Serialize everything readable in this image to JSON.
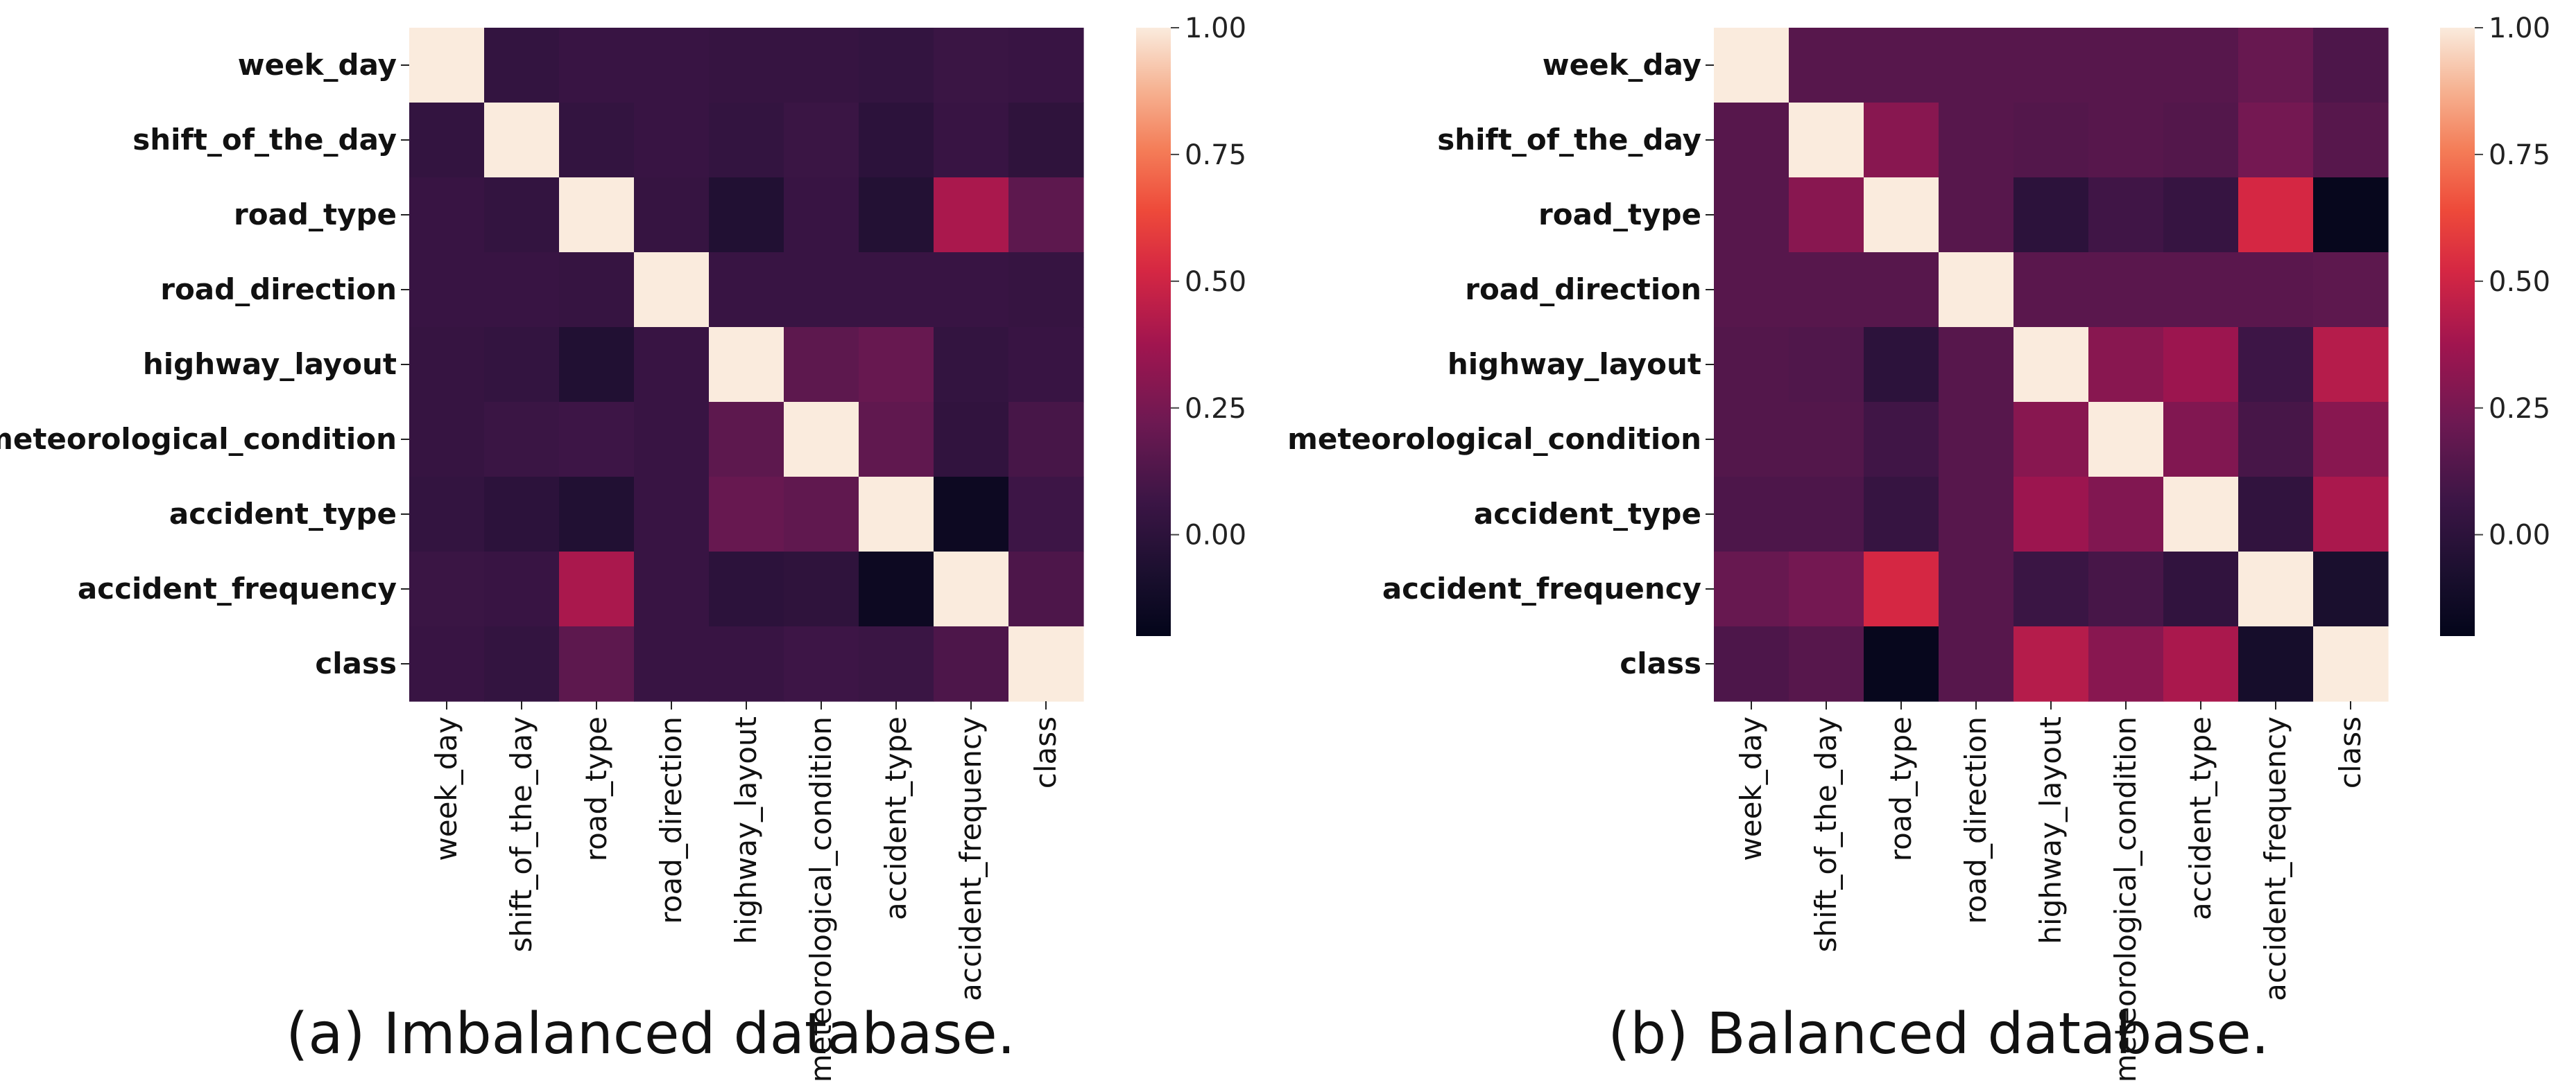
{
  "chart_data": [
    {
      "type": "heatmap",
      "variables": [
        "week_day",
        "shift_of_the_day",
        "road_type",
        "road_direction",
        "highway_layout",
        "meteorological_condition",
        "accident_type",
        "accident_frequency",
        "class"
      ],
      "matrix": [
        [
          1.0,
          0.03,
          0.05,
          0.05,
          0.04,
          0.04,
          0.03,
          0.06,
          0.05
        ],
        [
          0.03,
          1.0,
          0.03,
          0.05,
          0.03,
          0.06,
          0.0,
          0.05,
          0.01
        ],
        [
          0.05,
          0.03,
          1.0,
          0.04,
          -0.05,
          0.05,
          -0.04,
          0.4,
          0.17
        ],
        [
          0.05,
          0.05,
          0.04,
          1.0,
          0.05,
          0.05,
          0.05,
          0.05,
          0.04
        ],
        [
          0.04,
          0.03,
          -0.05,
          0.05,
          1.0,
          0.17,
          0.2,
          0.03,
          0.05
        ],
        [
          0.04,
          0.06,
          0.07,
          0.05,
          0.17,
          1.0,
          0.18,
          0.02,
          0.1
        ],
        [
          0.03,
          0.0,
          -0.05,
          0.05,
          0.2,
          0.18,
          1.0,
          -0.15,
          0.07
        ],
        [
          0.06,
          0.05,
          0.4,
          0.05,
          0.0,
          0.01,
          -0.15,
          1.0,
          0.12
        ],
        [
          0.05,
          0.03,
          0.17,
          0.05,
          0.05,
          0.07,
          0.06,
          0.12,
          1.0
        ]
      ],
      "vmin": -0.2,
      "vmax": 1.0,
      "colorbar_ticks": [
        "1.00",
        "0.75",
        "0.50",
        "0.25",
        "0.00"
      ],
      "colorbar_tick_values": [
        1.0,
        0.75,
        0.5,
        0.25,
        0.0
      ],
      "colormap": "rocket",
      "caption": "(a) Imbalanced database."
    },
    {
      "type": "heatmap",
      "variables": [
        "week_day",
        "shift_of_the_day",
        "road_type",
        "road_direction",
        "highway_layout",
        "meteorological_condition",
        "accident_type",
        "accident_frequency",
        "class"
      ],
      "matrix": [
        [
          1.0,
          0.15,
          0.15,
          0.15,
          0.15,
          0.15,
          0.15,
          0.2,
          0.12
        ],
        [
          0.15,
          1.0,
          0.3,
          0.15,
          0.14,
          0.15,
          0.14,
          0.24,
          0.15
        ],
        [
          0.15,
          0.3,
          1.0,
          0.15,
          0.0,
          0.08,
          0.04,
          0.52,
          -0.18
        ],
        [
          0.15,
          0.15,
          0.15,
          1.0,
          0.16,
          0.16,
          0.16,
          0.16,
          0.17
        ],
        [
          0.14,
          0.13,
          0.0,
          0.15,
          1.0,
          0.3,
          0.36,
          0.07,
          0.43
        ],
        [
          0.14,
          0.14,
          0.08,
          0.15,
          0.3,
          1.0,
          0.28,
          0.1,
          0.3
        ],
        [
          0.12,
          0.12,
          0.04,
          0.15,
          0.36,
          0.28,
          1.0,
          0.02,
          0.4
        ],
        [
          0.2,
          0.24,
          0.52,
          0.15,
          0.06,
          0.1,
          0.02,
          1.0,
          -0.08
        ],
        [
          0.12,
          0.15,
          -0.18,
          0.15,
          0.43,
          0.3,
          0.4,
          -0.1,
          1.0
        ]
      ],
      "vmin": -0.2,
      "vmax": 1.0,
      "colorbar_ticks": [
        "1.00",
        "0.75",
        "0.50",
        "0.25",
        "0.00"
      ],
      "colorbar_tick_values": [
        1.0,
        0.75,
        0.5,
        0.25,
        0.0
      ],
      "colormap": "rocket",
      "caption": "(b) Balanced database."
    }
  ]
}
